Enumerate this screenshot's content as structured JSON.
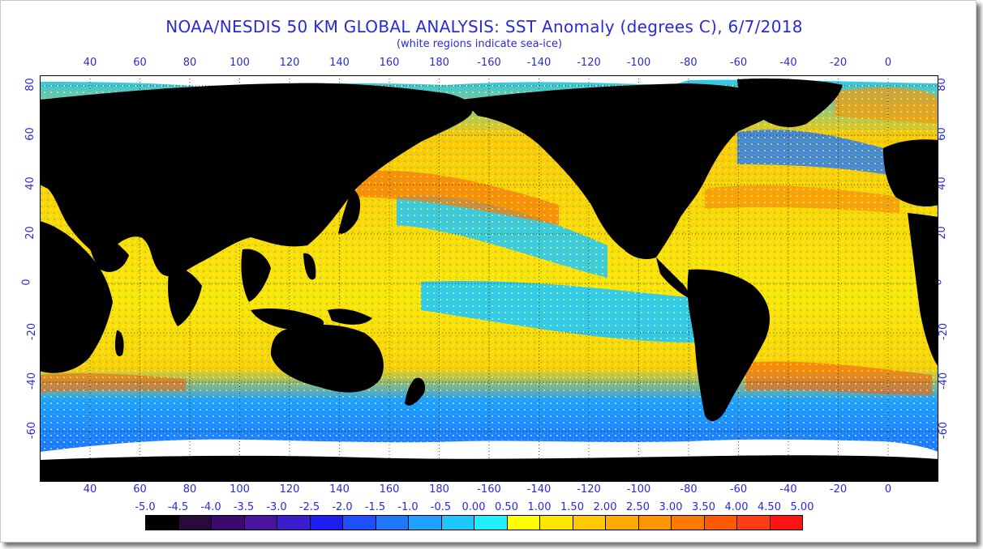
{
  "title": "NOAA/NESDIS 50 KM GLOBAL ANALYSIS: SST Anomaly (degrees C), 6/7/2018",
  "subtitle": "(white regions indicate sea-ice)",
  "map": {
    "lon_ticks": [
      "40",
      "60",
      "80",
      "100",
      "120",
      "140",
      "160",
      "180",
      "-160",
      "-140",
      "-120",
      "-100",
      "-80",
      "-60",
      "-40",
      "-20",
      "0"
    ],
    "lat_ticks": [
      "80",
      "60",
      "40",
      "20",
      "0",
      "-20",
      "-40",
      "-60"
    ],
    "colors": {
      "land": "#000000",
      "ice": "#ffffff",
      "gridline": "#000000"
    }
  },
  "scale": {
    "labels": [
      "-5.0",
      "-4.5",
      "-4.0",
      "-3.5",
      "-3.0",
      "-2.5",
      "-2.0",
      "-1.5",
      "-1.0",
      "-0.5",
      "0.00",
      "0.50",
      "1.00",
      "1.50",
      "2.00",
      "2.50",
      "3.00",
      "3.50",
      "4.00",
      "4.50",
      "5.00"
    ],
    "colors": [
      "#000000",
      "#2a0a3a",
      "#3c0a6e",
      "#4a12a0",
      "#3a1ecc",
      "#1e1ef0",
      "#1e50ff",
      "#1e78ff",
      "#1ea0ff",
      "#1ec8ff",
      "#1ef0ff",
      "#ffff00",
      "#ffe600",
      "#ffc800",
      "#ffaa00",
      "#ff9600",
      "#ff7800",
      "#ff5a00",
      "#ff3c14",
      "#ff1414"
    ]
  }
}
